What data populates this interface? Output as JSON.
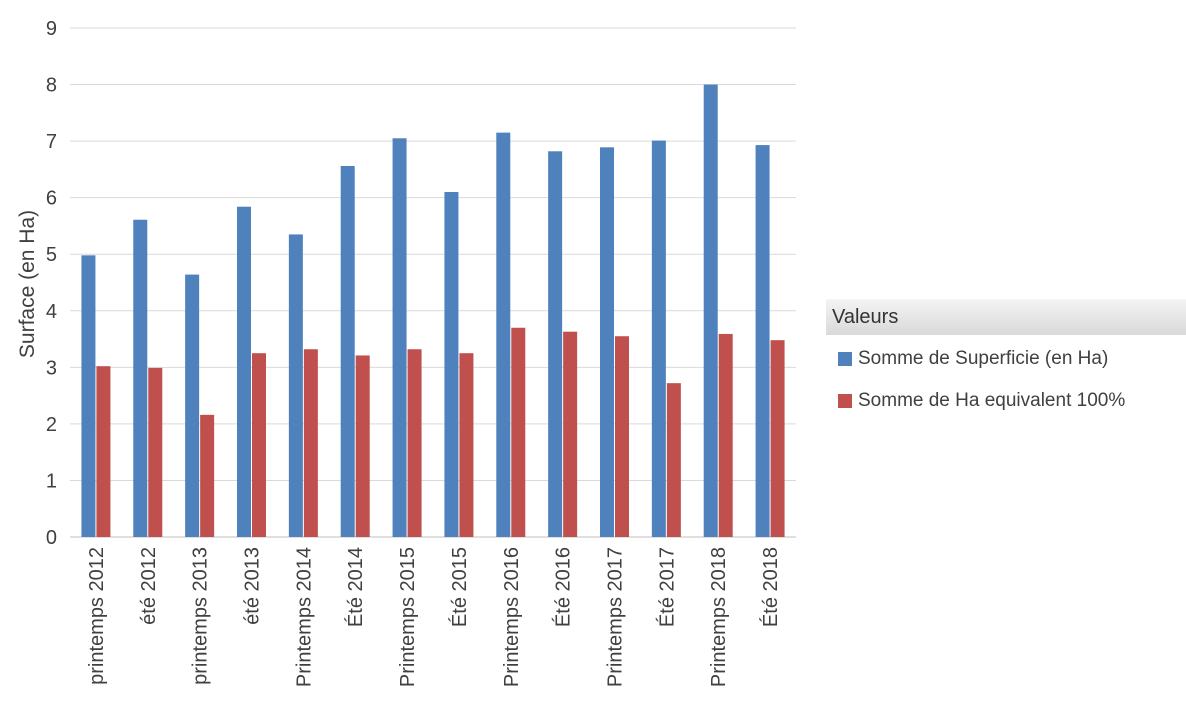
{
  "chart_data": {
    "type": "bar",
    "title": "",
    "xlabel": "",
    "ylabel": "Surface (en Ha)",
    "ylim": [
      0,
      9
    ],
    "yticks": [
      0,
      1,
      2,
      3,
      4,
      5,
      6,
      7,
      8,
      9
    ],
    "grid": true,
    "legend_position": "right",
    "legend_title": "Valeurs",
    "categories": [
      "printemps 2012",
      "été 2012",
      "printemps 2013",
      "été 2013",
      "Printemps 2014",
      "Été 2014",
      "Printemps 2015",
      "Été 2015",
      "Printemps 2016",
      "Été 2016",
      "Printemps 2017",
      "Été 2017",
      "Printemps 2018",
      "Été 2018"
    ],
    "series": [
      {
        "name": "Somme de Superficie (en Ha)",
        "color": "#4f81bd",
        "values": [
          4.98,
          5.61,
          4.64,
          5.84,
          5.35,
          6.56,
          7.05,
          6.1,
          7.15,
          6.82,
          6.89,
          7.01,
          8.0,
          6.93
        ]
      },
      {
        "name": "Somme de Ha equivalent 100%",
        "color": "#c0504d",
        "values": [
          3.02,
          2.99,
          2.16,
          3.25,
          3.32,
          3.21,
          3.32,
          3.25,
          3.7,
          3.63,
          3.55,
          2.72,
          3.59,
          3.48
        ]
      }
    ]
  }
}
